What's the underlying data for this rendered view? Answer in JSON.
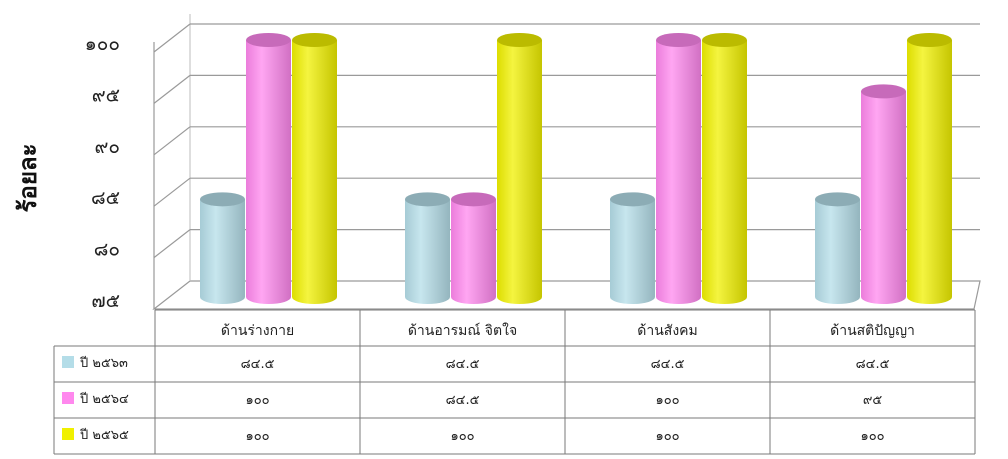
{
  "chart_data": {
    "type": "bar",
    "title": "",
    "ylabel": "ร้อยละ",
    "xlabel": "",
    "ylim": [
      75,
      100
    ],
    "yticks": [
      {
        "value": 75,
        "label": "๗๕"
      },
      {
        "value": 80,
        "label": "๘๐"
      },
      {
        "value": 85,
        "label": "๘๕"
      },
      {
        "value": 90,
        "label": "๙๐"
      },
      {
        "value": 95,
        "label": "๙๕"
      },
      {
        "value": 100,
        "label": "๑๐๐"
      }
    ],
    "categories": [
      "ด้านร่างกาย",
      "ด้านอารมณ์ จิตใจ",
      "ด้านสังคม",
      "ด้านสติปัญญา"
    ],
    "grid": true,
    "legend_position": "data-table-left",
    "series": [
      {
        "name": "ปี ๒๕๖๓",
        "color": "#b4dde8",
        "values": [
          84.5,
          84.5,
          84.5,
          84.5
        ],
        "labels": [
          "๘๔.๕",
          "๘๔.๕",
          "๘๔.๕",
          "๘๔.๕"
        ]
      },
      {
        "name": "ปี ๒๕๖๔",
        "color": "#ff88ee",
        "values": [
          100,
          84.5,
          100,
          95
        ],
        "labels": [
          "๑๐๐",
          "๘๔.๕",
          "๑๐๐",
          "๙๕"
        ]
      },
      {
        "name": "ปี ๒๕๖๕",
        "color": "#f0f000",
        "values": [
          100,
          100,
          100,
          100
        ],
        "labels": [
          "๑๐๐",
          "๑๐๐",
          "๑๐๐",
          "๑๐๐"
        ]
      }
    ]
  }
}
